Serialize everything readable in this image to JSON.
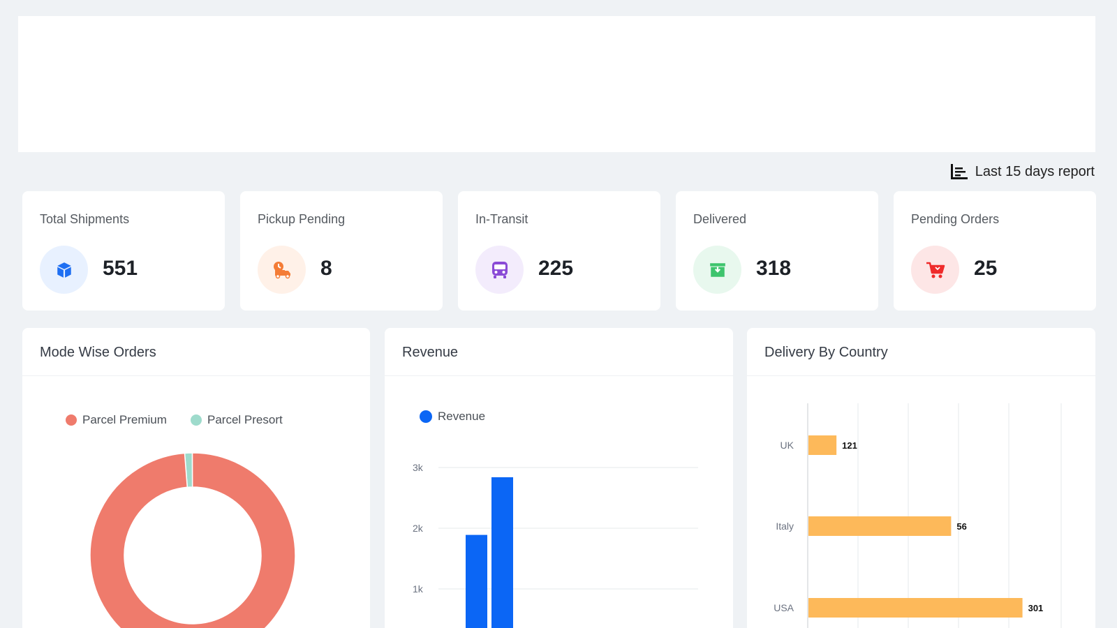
{
  "report": {
    "label": "Last 15 days report",
    "icon": "bar-chart-icon"
  },
  "stats": [
    {
      "label": "Total Shipments",
      "value": "551",
      "icon": "box-icon",
      "icon_color": "#1e6ff2",
      "bg_color": "#e8f1ff"
    },
    {
      "label": "Pickup Pending",
      "value": "8",
      "icon": "delivery-truck-icon",
      "icon_color": "#f47c36",
      "bg_color": "#fff1e8"
    },
    {
      "label": "In-Transit",
      "value": "225",
      "icon": "bus-icon",
      "icon_color": "#8a4bd6",
      "bg_color": "#f3ecfc"
    },
    {
      "label": "Delivered",
      "value": "318",
      "icon": "archive-icon",
      "icon_color": "#3ec46d",
      "bg_color": "#e8f8ee"
    },
    {
      "label": "Pending Orders",
      "value": "25",
      "icon": "cart-icon",
      "icon_color": "#ef2b2b",
      "bg_color": "#fde6e6"
    }
  ],
  "panels": {
    "mode": {
      "title": "Mode Wise Orders"
    },
    "revenue": {
      "title": "Revenue"
    },
    "country": {
      "title": "Delivery By Country"
    }
  },
  "colors": {
    "premium": "#ef7b6c",
    "presort": "#9edbcc",
    "revenue": "#0b66f5",
    "country_bar": "#fdb95a"
  },
  "chart_data": [
    {
      "type": "pie",
      "title": "Mode Wise Orders",
      "labels": [
        "Parcel Premium",
        "Parcel Presort"
      ],
      "values": [
        98.8,
        1.2
      ],
      "donut": true
    },
    {
      "type": "bar",
      "title": "Revenue",
      "series": [
        {
          "name": "Revenue",
          "values": [
            1890,
            2840
          ]
        }
      ],
      "y_ticks": [
        "1k",
        "2k",
        "3k"
      ],
      "ylim": [
        0,
        3000
      ],
      "grid": true,
      "legend": "top-left"
    },
    {
      "type": "bar",
      "orientation": "horizontal",
      "title": "Delivery By Country",
      "categories": [
        "UK",
        "Italy",
        "USA"
      ],
      "values": [
        121,
        56,
        301
      ],
      "bar_lengths": [
        0.11,
        0.56,
        0.84
      ],
      "grid": true
    }
  ]
}
